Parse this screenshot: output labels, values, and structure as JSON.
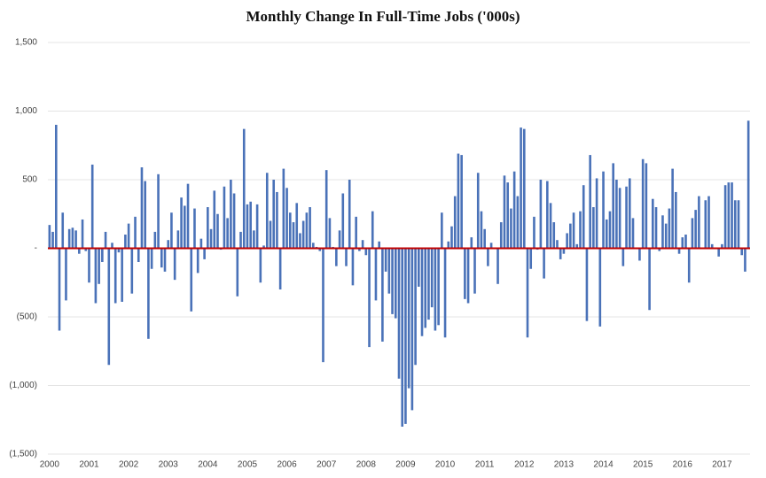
{
  "chart_data": {
    "type": "bar",
    "title": "Monthly Change In Full-Time Jobs ('000s)",
    "categories": [
      "2000",
      null,
      null,
      null,
      null,
      null,
      null,
      null,
      null,
      null,
      null,
      null,
      "2001",
      null,
      null,
      null,
      null,
      null,
      null,
      null,
      null,
      null,
      null,
      null,
      "2002",
      null,
      null,
      null,
      null,
      null,
      null,
      null,
      null,
      null,
      null,
      null,
      "2003",
      null,
      null,
      null,
      null,
      null,
      null,
      null,
      null,
      null,
      null,
      null,
      "2004",
      null,
      null,
      null,
      null,
      null,
      null,
      null,
      null,
      null,
      null,
      null,
      "2005",
      null,
      null,
      null,
      null,
      null,
      null,
      null,
      null,
      null,
      null,
      null,
      "2006",
      null,
      null,
      null,
      null,
      null,
      null,
      null,
      null,
      null,
      null,
      null,
      "2007",
      null,
      null,
      null,
      null,
      null,
      null,
      null,
      null,
      null,
      null,
      null,
      "2008",
      null,
      null,
      null,
      null,
      null,
      null,
      null,
      null,
      null,
      null,
      null,
      "2009",
      null,
      null,
      null,
      null,
      null,
      null,
      null,
      null,
      null,
      null,
      null,
      "2010",
      null,
      null,
      null,
      null,
      null,
      null,
      null,
      null,
      null,
      null,
      null,
      "2011",
      null,
      null,
      null,
      null,
      null,
      null,
      null,
      null,
      null,
      null,
      null,
      "2012",
      null,
      null,
      null,
      null,
      null,
      null,
      null,
      null,
      null,
      null,
      null,
      "2013",
      null,
      null,
      null,
      null,
      null,
      null,
      null,
      null,
      null,
      null,
      null,
      "2014",
      null,
      null,
      null,
      null,
      null,
      null,
      null,
      null,
      null,
      null,
      null,
      "2015",
      null,
      null,
      null,
      null,
      null,
      null,
      null,
      null,
      null,
      null,
      null,
      "2016",
      null,
      null,
      null,
      null,
      null,
      null,
      null,
      null,
      null,
      null,
      null,
      "2017",
      null,
      null,
      null,
      null,
      null,
      null,
      null,
      null
    ],
    "values": [
      170,
      120,
      900,
      -600,
      260,
      -380,
      140,
      150,
      130,
      -40,
      210,
      -20,
      -250,
      610,
      -400,
      -260,
      -100,
      120,
      -850,
      40,
      -400,
      -30,
      -390,
      100,
      180,
      -330,
      230,
      -100,
      590,
      490,
      -660,
      -150,
      120,
      540,
      -140,
      -170,
      60,
      260,
      -230,
      130,
      370,
      310,
      470,
      -460,
      290,
      -180,
      70,
      -80,
      300,
      140,
      420,
      250,
      -10,
      450,
      220,
      500,
      400,
      -350,
      120,
      870,
      320,
      340,
      130,
      320,
      -250,
      20,
      550,
      200,
      500,
      410,
      -300,
      580,
      440,
      260,
      190,
      330,
      110,
      200,
      260,
      300,
      40,
      10,
      -20,
      -830,
      570,
      220,
      10,
      -130,
      130,
      400,
      -130,
      500,
      -270,
      230,
      -20,
      60,
      -50,
      -720,
      270,
      -380,
      50,
      -680,
      -170,
      -330,
      -480,
      -510,
      -950,
      -1300,
      -1280,
      -1020,
      -1180,
      -850,
      -280,
      -640,
      -580,
      -520,
      -430,
      -600,
      -560,
      260,
      -650,
      50,
      160,
      380,
      690,
      680,
      -370,
      -400,
      80,
      -330,
      550,
      270,
      140,
      -130,
      40,
      0,
      -260,
      190,
      530,
      480,
      290,
      560,
      380,
      880,
      870,
      -650,
      -150,
      230,
      -10,
      500,
      -220,
      490,
      330,
      190,
      60,
      -80,
      -40,
      110,
      180,
      260,
      30,
      270,
      460,
      -530,
      680,
      300,
      510,
      -570,
      560,
      210,
      270,
      620,
      500,
      440,
      -130,
      450,
      510,
      220,
      0,
      -90,
      650,
      620,
      -450,
      360,
      300,
      -20,
      240,
      180,
      290,
      580,
      410,
      -40,
      80,
      100,
      -250,
      220,
      280,
      380,
      0,
      350,
      380,
      30,
      0,
      -60,
      30,
      460,
      480,
      480,
      350,
      350,
      -50,
      -170,
      930
    ],
    "color": "#4a72b8",
    "zero_line_color": "#c00000",
    "ylim": [
      -1500,
      1500
    ],
    "yticks": [
      {
        "value": -1500,
        "label": "(1,500)"
      },
      {
        "value": -1000,
        "label": "(1,000)"
      },
      {
        "value": -500,
        "label": "(500)"
      },
      {
        "value": 0,
        "label": "-"
      },
      {
        "value": 500,
        "label": "500"
      },
      {
        "value": 1000,
        "label": "1,000"
      },
      {
        "value": 1500,
        "label": "1,500"
      }
    ],
    "grid": true
  }
}
